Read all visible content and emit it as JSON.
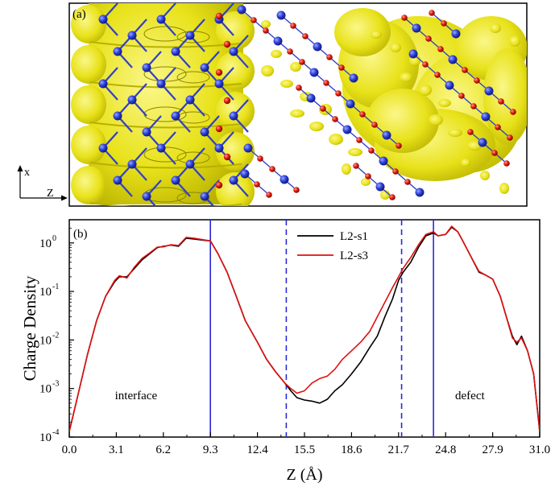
{
  "panel_a": {
    "label": "(a)",
    "axis_x": "x",
    "axis_z": "Z",
    "colors": {
      "isosurface": "#e8e21a",
      "atom_blue": "#2c3fd6",
      "atom_red": "#e01a0a",
      "bond": "#3040c8"
    }
  },
  "chart_data": {
    "type": "line",
    "panel_label": "(b)",
    "xlabel": "Z (Å)",
    "ylabel": "Charge Density",
    "xlim": [
      0,
      31
    ],
    "ylim": [
      0.0001,
      3
    ],
    "yscale": "log",
    "xticks": [
      "0.0",
      "3.1",
      "6.2",
      "9.3",
      "12.4",
      "15.5",
      "18.6",
      "21.7",
      "24.8",
      "27.9",
      "31.0"
    ],
    "yticks": [
      {
        "value": 1,
        "label": "10",
        "exp": "0"
      },
      {
        "value": 0.1,
        "label": "10",
        "exp": "-1"
      },
      {
        "value": 0.01,
        "label": "10",
        "exp": "-2"
      },
      {
        "value": 0.001,
        "label": "10",
        "exp": "-3"
      },
      {
        "value": 0.0001,
        "label": "10",
        "exp": "-4"
      }
    ],
    "legend_position": "top-center",
    "series": [
      {
        "name": "L2-s1",
        "color": "#000000",
        "x": [
          0.0,
          0.6,
          1.2,
          1.8,
          2.4,
          3.0,
          3.3,
          3.8,
          4.3,
          4.8,
          5.3,
          5.8,
          6.2,
          6.7,
          7.2,
          7.7,
          8.2,
          8.7,
          9.3,
          9.8,
          10.4,
          11.0,
          11.6,
          12.4,
          13.0,
          13.6,
          14.2,
          14.6,
          15.0,
          15.5,
          16.0,
          16.5,
          17.0,
          17.5,
          18.0,
          18.6,
          19.2,
          19.8,
          20.3,
          20.8,
          21.3,
          21.7,
          22.0,
          22.5,
          23.0,
          23.5,
          24.0,
          24.3,
          24.8,
          25.2,
          25.6,
          26.0,
          26.5,
          27.0,
          27.4,
          27.9,
          28.4,
          28.8,
          29.2,
          29.5,
          29.8,
          30.2,
          30.6,
          31.0
        ],
        "y": [
          0.00013,
          0.0008,
          0.005,
          0.025,
          0.08,
          0.16,
          0.2,
          0.2,
          0.3,
          0.45,
          0.6,
          0.8,
          0.85,
          0.9,
          0.85,
          1.25,
          1.2,
          1.15,
          1.1,
          0.6,
          0.25,
          0.08,
          0.025,
          0.009,
          0.004,
          0.0022,
          0.0013,
          0.0009,
          0.00065,
          0.00058,
          0.00055,
          0.0005,
          0.0006,
          0.0009,
          0.0012,
          0.002,
          0.0035,
          0.007,
          0.012,
          0.03,
          0.07,
          0.17,
          0.25,
          0.4,
          0.8,
          1.4,
          1.6,
          1.4,
          1.5,
          2.1,
          1.7,
          1.0,
          0.5,
          0.25,
          0.22,
          0.18,
          0.08,
          0.03,
          0.012,
          0.008,
          0.012,
          0.006,
          0.002,
          0.00013
        ]
      },
      {
        "name": "L2-s3",
        "color": "#e01010",
        "x": [
          0.0,
          0.6,
          1.2,
          1.8,
          2.4,
          3.0,
          3.3,
          3.8,
          4.3,
          4.8,
          5.3,
          5.8,
          6.2,
          6.7,
          7.2,
          7.7,
          8.2,
          8.7,
          9.3,
          9.8,
          10.4,
          11.0,
          11.6,
          12.4,
          13.0,
          13.6,
          14.2,
          14.6,
          15.0,
          15.5,
          16.0,
          16.5,
          17.0,
          17.5,
          18.0,
          18.6,
          19.2,
          19.8,
          20.3,
          20.8,
          21.3,
          21.7,
          22.0,
          22.5,
          23.0,
          23.5,
          24.0,
          24.3,
          24.8,
          25.2,
          25.6,
          26.0,
          26.5,
          27.0,
          27.4,
          27.9,
          28.4,
          28.8,
          29.2,
          29.5,
          29.8,
          30.2,
          30.6,
          31.0
        ],
        "y": [
          0.00013,
          0.0008,
          0.005,
          0.025,
          0.08,
          0.17,
          0.21,
          0.19,
          0.32,
          0.48,
          0.62,
          0.82,
          0.83,
          0.92,
          0.88,
          1.3,
          1.25,
          1.18,
          1.1,
          0.6,
          0.25,
          0.08,
          0.025,
          0.009,
          0.004,
          0.0022,
          0.0013,
          0.001,
          0.0008,
          0.0009,
          0.0013,
          0.0016,
          0.0018,
          0.0025,
          0.004,
          0.006,
          0.009,
          0.015,
          0.03,
          0.06,
          0.12,
          0.2,
          0.3,
          0.5,
          0.9,
          1.5,
          1.7,
          1.4,
          1.5,
          2.2,
          1.7,
          1.0,
          0.5,
          0.26,
          0.22,
          0.18,
          0.08,
          0.03,
          0.011,
          0.009,
          0.011,
          0.006,
          0.002,
          0.00013
        ]
      }
    ],
    "vlines": [
      {
        "x": 9.3,
        "style": "solid",
        "color": "#2a2ad6"
      },
      {
        "x": 14.3,
        "style": "dashed",
        "color": "#2a2ad6"
      },
      {
        "x": 21.9,
        "style": "dashed",
        "color": "#2a2ad6"
      },
      {
        "x": 24.0,
        "style": "solid",
        "color": "#2a2ad6"
      }
    ],
    "annotations": [
      {
        "text": "interface",
        "x": 4.4,
        "y": 0.0006
      },
      {
        "text": "defect",
        "x": 26.4,
        "y": 0.0006
      }
    ]
  }
}
